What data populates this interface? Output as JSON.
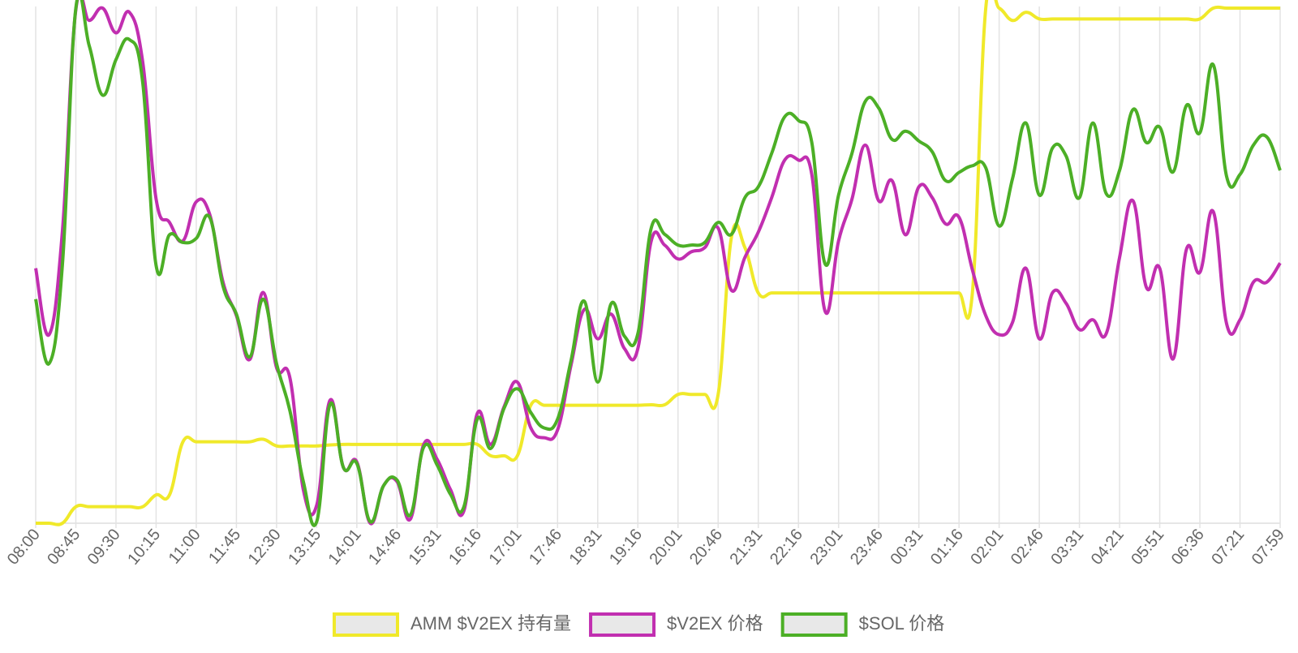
{
  "chart_data": {
    "type": "line",
    "categories": [
      "08:00",
      null,
      null,
      "08:45",
      null,
      null,
      "09:30",
      null,
      null,
      "10:15",
      null,
      null,
      "11:00",
      null,
      null,
      "11:45",
      null,
      null,
      "12:30",
      null,
      null,
      "13:15",
      null,
      null,
      "14:01",
      null,
      null,
      "14:46",
      null,
      null,
      "15:31",
      null,
      null,
      "16:16",
      null,
      null,
      "17:01",
      null,
      null,
      "17:46",
      null,
      null,
      "18:31",
      null,
      null,
      "19:16",
      null,
      null,
      "20:01",
      null,
      null,
      "20:46",
      null,
      null,
      "21:31",
      null,
      null,
      "22:16",
      null,
      null,
      "23:01",
      null,
      null,
      "23:46",
      null,
      null,
      "00:31",
      null,
      null,
      "01:16",
      null,
      null,
      "02:01",
      null,
      null,
      "02:46",
      null,
      null,
      "03:31",
      null,
      null,
      "04:21",
      null,
      null,
      "05:51",
      null,
      null,
      "06:36",
      null,
      null,
      "07:21",
      null,
      null,
      "07:59"
    ],
    "ylim": [
      0,
      100
    ],
    "grid": true,
    "legend": "bottom",
    "series": [
      {
        "name": "AMM $V2EX 持有量",
        "color": "#f0e92a",
        "values": [
          0,
          0,
          0,
          3.2,
          3.2,
          3.2,
          3.2,
          3.2,
          3.2,
          5.5,
          5.5,
          15.8,
          15.8,
          15.8,
          15.8,
          15.8,
          15.8,
          16.3,
          15,
          15,
          15,
          15,
          15.2,
          15.3,
          15.3,
          15.3,
          15.3,
          15.3,
          15.3,
          15.3,
          15.3,
          15.3,
          15.3,
          15.3,
          13.1,
          13.1,
          13.1,
          22.9,
          22.9,
          22.9,
          22.9,
          22.9,
          22.9,
          22.9,
          22.9,
          22.9,
          23,
          23,
          25,
          25,
          25,
          25,
          55.6,
          53.5,
          44.7,
          44.7,
          44.7,
          44.7,
          44.7,
          44.7,
          44.7,
          44.7,
          44.7,
          44.7,
          44.7,
          44.7,
          44.7,
          44.7,
          44.7,
          44.7,
          44.7,
          100,
          100,
          97.6,
          99.2,
          97.9,
          97.9,
          97.9,
          97.9,
          97.9,
          97.9,
          97.9,
          97.9,
          97.9,
          97.9,
          97.9,
          97.9,
          97.9,
          100,
          100,
          100,
          100,
          100,
          100
        ]
      },
      {
        "name": "$V2EX 价格",
        "color": "#c12fb0",
        "values": [
          49.5,
          36.6,
          56.8,
          99.7,
          97.6,
          100,
          95.2,
          99.2,
          89.5,
          62.9,
          58.4,
          54.8,
          62.4,
          60,
          46.8,
          40.3,
          31.8,
          44.8,
          30.2,
          28.2,
          6.5,
          3.5,
          23.9,
          10.8,
          11.9,
          0,
          7.3,
          8.1,
          0.8,
          15.3,
          12.4,
          6.5,
          2.4,
          21.3,
          15.3,
          22.6,
          27.4,
          18.5,
          16.6,
          18.1,
          30.6,
          41.5,
          35.8,
          40.6,
          33.9,
          33.9,
          54.8,
          54,
          51.3,
          52.7,
          53.5,
          57.3,
          45.2,
          51.6,
          56.5,
          63.2,
          70.6,
          70.5,
          67.7,
          41.1,
          54.8,
          62.9,
          73.4,
          62.6,
          66.5,
          56,
          65.3,
          63.2,
          58.1,
          59.4,
          49.2,
          40.3,
          36.6,
          39,
          49.5,
          35.8,
          44.8,
          42.7,
          37.6,
          39.5,
          36.8,
          51.6,
          62.6,
          45.8,
          49.5,
          31.9,
          53.2,
          48.7,
          60.5,
          38.7,
          39.5,
          46.8,
          46.8,
          50.5
        ]
      },
      {
        "name": "$SOL 价格",
        "color": "#4caf26",
        "values": [
          43.5,
          31,
          50.3,
          100,
          92.7,
          83.1,
          90,
          93.9,
          85.5,
          50,
          56,
          54.5,
          55.3,
          59.4,
          46,
          40.6,
          32.3,
          43.5,
          31,
          21.8,
          8.1,
          0.3,
          23.1,
          10.8,
          11.6,
          0.3,
          7.3,
          8.4,
          1.6,
          14.8,
          11.3,
          5.6,
          3.2,
          20.2,
          14.5,
          22.3,
          26.1,
          21.5,
          18.5,
          20.2,
          31.5,
          43.1,
          27.4,
          42.6,
          36.3,
          36.8,
          57.3,
          56.1,
          54,
          54,
          54.5,
          58.4,
          56.1,
          63.2,
          65.3,
          71.8,
          79,
          78.2,
          73.9,
          50.3,
          63.7,
          71.8,
          81.9,
          80.6,
          74.5,
          76.1,
          74.2,
          72.1,
          66.5,
          68.1,
          69.4,
          69,
          57.7,
          66.9,
          77.7,
          63.7,
          72.9,
          71.3,
          63.2,
          77.7,
          64,
          68.5,
          80.3,
          73.9,
          76.9,
          68.2,
          81.1,
          75.8,
          89,
          67.3,
          67.7,
          73.4,
          75,
          68.5
        ]
      }
    ]
  }
}
